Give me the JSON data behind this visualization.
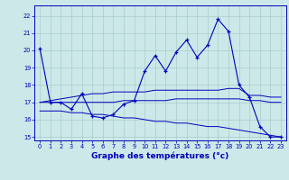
{
  "title": "Graphe des températures (°c)",
  "background_color": "#cce8e8",
  "grid_color": "#aacccc",
  "line_color": "#0000bb",
  "xlim": [
    -0.5,
    23.5
  ],
  "ylim": [
    14.8,
    22.6
  ],
  "yticks": [
    15,
    16,
    17,
    18,
    19,
    20,
    21,
    22
  ],
  "xticks": [
    0,
    1,
    2,
    3,
    4,
    5,
    6,
    7,
    8,
    9,
    10,
    11,
    12,
    13,
    14,
    15,
    16,
    17,
    18,
    19,
    20,
    21,
    22,
    23
  ],
  "temp_line": [
    20.1,
    17.0,
    17.0,
    16.6,
    17.5,
    16.2,
    16.1,
    16.3,
    16.9,
    17.1,
    18.8,
    19.7,
    18.8,
    19.9,
    20.6,
    19.6,
    20.3,
    21.8,
    21.1,
    18.0,
    17.3,
    15.6,
    15.0,
    15.0
  ],
  "mean_line_top": [
    17.0,
    17.1,
    17.2,
    17.3,
    17.4,
    17.5,
    17.5,
    17.6,
    17.6,
    17.6,
    17.6,
    17.7,
    17.7,
    17.7,
    17.7,
    17.7,
    17.7,
    17.7,
    17.8,
    17.8,
    17.4,
    17.4,
    17.3,
    17.3
  ],
  "mean_line_mid": [
    17.0,
    17.0,
    17.0,
    17.0,
    17.0,
    17.0,
    17.0,
    17.0,
    17.1,
    17.1,
    17.1,
    17.1,
    17.1,
    17.2,
    17.2,
    17.2,
    17.2,
    17.2,
    17.2,
    17.2,
    17.1,
    17.1,
    17.0,
    17.0
  ],
  "mean_line_bot": [
    16.5,
    16.5,
    16.5,
    16.4,
    16.4,
    16.3,
    16.3,
    16.2,
    16.1,
    16.1,
    16.0,
    15.9,
    15.9,
    15.8,
    15.8,
    15.7,
    15.6,
    15.6,
    15.5,
    15.4,
    15.3,
    15.2,
    15.1,
    15.0
  ],
  "ylabel_fontsize": 5.5,
  "xlabel_fontsize": 6.5,
  "tick_fontsize": 4.8
}
